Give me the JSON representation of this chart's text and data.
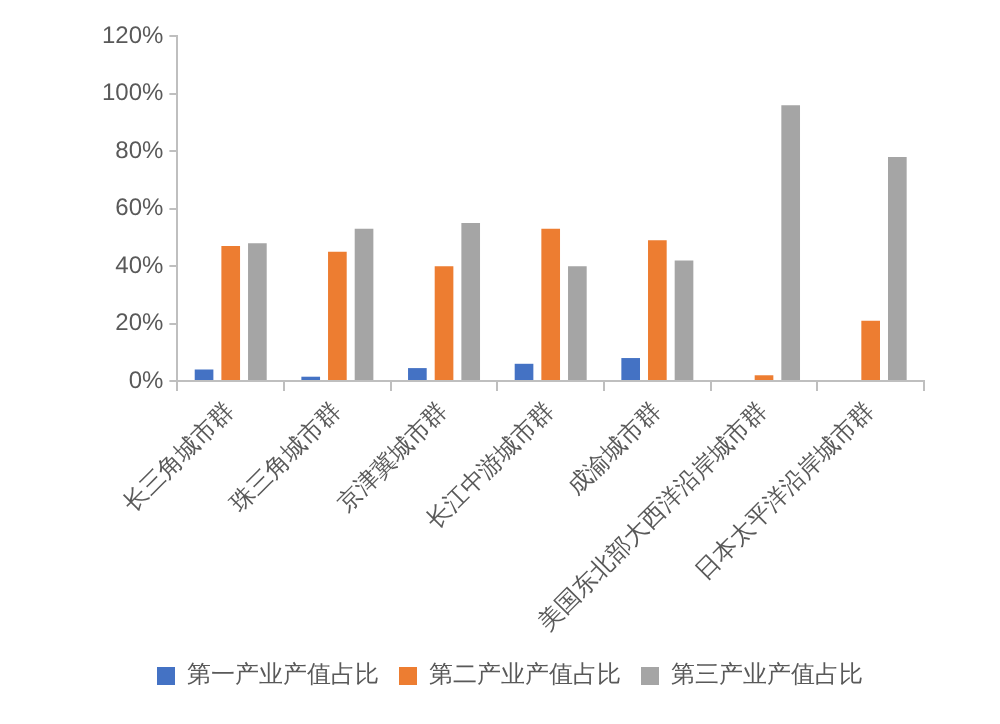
{
  "chart_data": {
    "type": "bar",
    "categories": [
      "长三角城市群",
      "珠三角城市群",
      "京津冀城市群",
      "长江中游城市群",
      "成渝城市群",
      "美国东北部大西洋沿岸城市群",
      "日本太平洋沿岸城市群"
    ],
    "series": [
      {
        "name": "第一产业产值占比",
        "color": "#4472c4",
        "values": [
          4,
          1.5,
          4.5,
          6,
          8,
          0,
          0
        ]
      },
      {
        "name": "第二产业产值占比",
        "color": "#ed7d31",
        "values": [
          47,
          45,
          40,
          53,
          49,
          2,
          21
        ]
      },
      {
        "name": "第三产业产值占比",
        "color": "#a5a5a5",
        "values": [
          48,
          53,
          55,
          40,
          42,
          96,
          78
        ]
      }
    ],
    "ylim": [
      0,
      120
    ],
    "yticks": [
      {
        "value": 0,
        "label": "0%"
      },
      {
        "value": 20,
        "label": "20%"
      },
      {
        "value": 40,
        "label": "40%"
      },
      {
        "value": 60,
        "label": "60%"
      },
      {
        "value": 80,
        "label": "80%"
      },
      {
        "value": 100,
        "label": "100%"
      },
      {
        "value": 120,
        "label": "120%"
      }
    ],
    "grid": false,
    "legend": "bottom"
  }
}
